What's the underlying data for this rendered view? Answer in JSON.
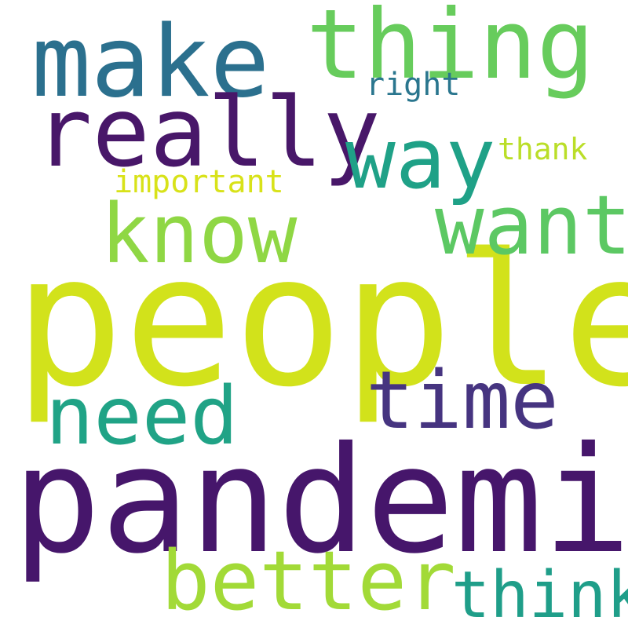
{
  "words": {
    "people": {
      "text": "people",
      "color": "#d2e21b"
    },
    "pandemic": {
      "text": "pandemic",
      "color": "#46166b"
    },
    "make": {
      "text": "make",
      "color": "#2b708e"
    },
    "thing": {
      "text": "thing",
      "color": "#67cc5c"
    },
    "really": {
      "text": "really",
      "color": "#481769"
    },
    "way": {
      "text": "way",
      "color": "#1fa187"
    },
    "know": {
      "text": "know",
      "color": "#8fd744"
    },
    "want": {
      "text": "want",
      "color": "#5cc863"
    },
    "time": {
      "text": "time",
      "color": "#463480"
    },
    "need": {
      "text": "need",
      "color": "#20a386"
    },
    "better": {
      "text": "better",
      "color": "#a2da37"
    },
    "think": {
      "text": "think",
      "color": "#1f9e89"
    },
    "right": {
      "text": "right",
      "color": "#2a768e"
    },
    "thank": {
      "text": "thank",
      "color": "#bade28"
    },
    "important": {
      "text": "important",
      "color": "#d8e219"
    }
  }
}
